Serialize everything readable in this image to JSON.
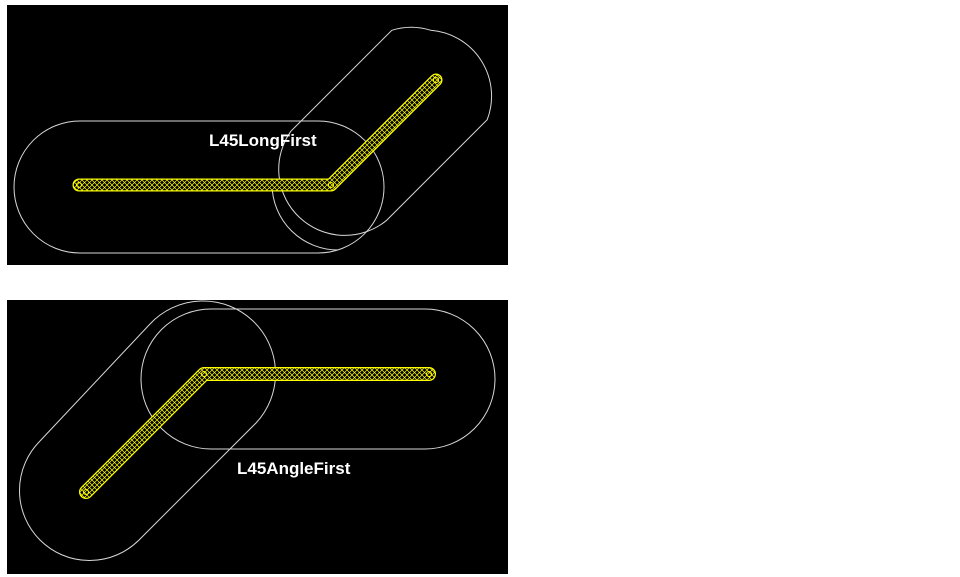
{
  "panels": [
    {
      "label": "L45LongFirst",
      "colors": {
        "background": "#000000",
        "outline": "#d8d8d8",
        "track": "#ffff00",
        "label": "#ffffff"
      }
    },
    {
      "label": "L45AngleFirst",
      "colors": {
        "background": "#000000",
        "outline": "#d8d8d8",
        "track": "#ffff00",
        "label": "#ffffff"
      }
    }
  ]
}
